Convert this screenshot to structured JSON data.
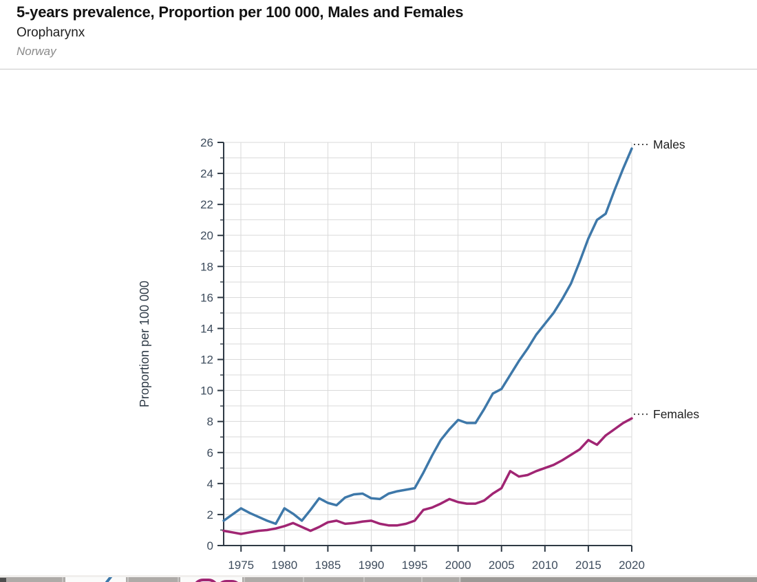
{
  "header": {
    "title": "5-years prevalence, Proportion per 100 000, Males and Females",
    "subtitle": "Oropharynx",
    "region": "Norway"
  },
  "chart_data": {
    "type": "line",
    "title": "5-years prevalence, Proportion per 100 000, Males and Females",
    "subtitle": "Oropharynx",
    "annotation": "Norway",
    "xlabel": "",
    "ylabel": "Proportion per 100 000",
    "xlim": [
      1973,
      2020
    ],
    "ylim": [
      0,
      26
    ],
    "x_ticks": [
      1975,
      1980,
      1985,
      1990,
      1995,
      2000,
      2005,
      2010,
      2015,
      2020
    ],
    "y_ticks": [
      0,
      2,
      4,
      6,
      8,
      10,
      12,
      14,
      16,
      18,
      20,
      22,
      24,
      26
    ],
    "grid": "horizontal every 1 unit, vertical every 5 years",
    "legend_position": "right-end-labels with dotted leaders",
    "x": [
      1973,
      1974,
      1975,
      1976,
      1977,
      1978,
      1979,
      1980,
      1981,
      1982,
      1983,
      1984,
      1985,
      1986,
      1987,
      1988,
      1989,
      1990,
      1991,
      1992,
      1993,
      1994,
      1995,
      1996,
      1997,
      1998,
      1999,
      2000,
      2001,
      2002,
      2003,
      2004,
      2005,
      2006,
      2007,
      2008,
      2009,
      2010,
      2011,
      2012,
      2013,
      2014,
      2015,
      2016,
      2017,
      2018,
      2019,
      2020
    ],
    "series": [
      {
        "name": "Males",
        "color": "#3E78A9",
        "values": [
          1.6,
          2.0,
          2.4,
          2.1,
          1.85,
          1.6,
          1.4,
          2.4,
          2.05,
          1.6,
          2.3,
          3.05,
          2.75,
          2.6,
          3.1,
          3.3,
          3.35,
          3.05,
          3.0,
          3.35,
          3.5,
          3.6,
          3.7,
          4.7,
          5.8,
          6.8,
          7.5,
          8.1,
          7.9,
          7.9,
          8.8,
          9.8,
          10.1,
          11.0,
          11.9,
          12.7,
          13.6,
          14.3,
          15.0,
          15.9,
          16.9,
          18.3,
          19.8,
          21.0,
          21.4,
          22.9,
          24.3,
          25.6
        ]
      },
      {
        "name": "Females",
        "color": "#A02573",
        "values": [
          0.95,
          0.85,
          0.75,
          0.85,
          0.95,
          1.0,
          1.1,
          1.25,
          1.45,
          1.2,
          0.95,
          1.2,
          1.5,
          1.6,
          1.4,
          1.45,
          1.55,
          1.6,
          1.4,
          1.3,
          1.3,
          1.4,
          1.6,
          2.3,
          2.45,
          2.7,
          3.0,
          2.8,
          2.7,
          2.7,
          2.9,
          3.35,
          3.7,
          4.8,
          4.45,
          4.55,
          4.8,
          5.0,
          5.2,
          5.5,
          5.85,
          6.2,
          6.8,
          6.5,
          7.1,
          7.5,
          7.9,
          8.2
        ]
      }
    ],
    "colors": {
      "grid": "#dadada",
      "axis": "#2E3944",
      "axis_title": "#2F3B47",
      "tick_label": "#3E4C5D",
      "series_label": "#1d1d1d",
      "leader": "#4a4a4a"
    }
  },
  "bottom_strip": {
    "fragments": [
      "dark-block",
      "blue-line-fragment",
      "purple-curve-fragment",
      "purple-curve-fragment-2"
    ],
    "colors": {
      "band": "#aeaba8",
      "cell": "#fbfbfa",
      "right_block": "#9c9996"
    }
  }
}
